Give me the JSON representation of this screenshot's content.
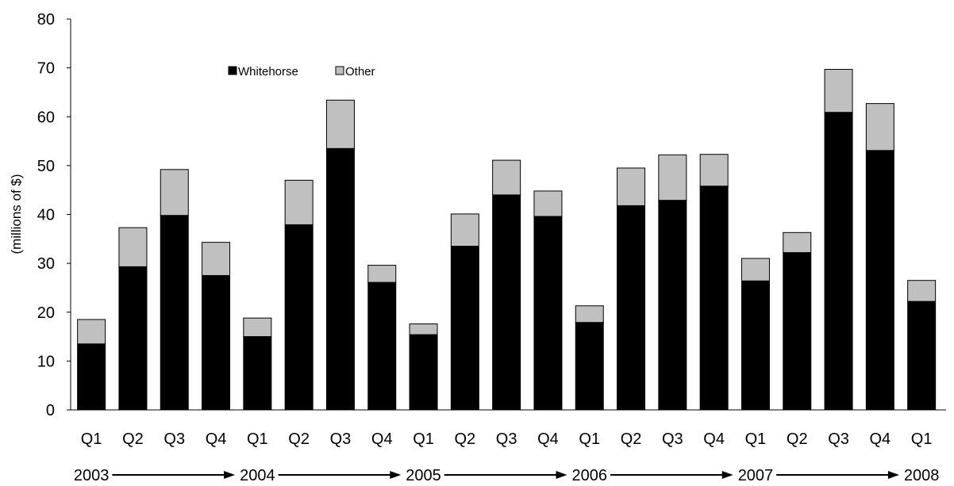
{
  "chart_data": {
    "type": "bar",
    "stacked": true,
    "categories": [
      "Q1",
      "Q2",
      "Q3",
      "Q4",
      "Q1",
      "Q2",
      "Q3",
      "Q4",
      "Q1",
      "Q2",
      "Q3",
      "Q4",
      "Q1",
      "Q2",
      "Q3",
      "Q4",
      "Q1",
      "Q2",
      "Q3",
      "Q4",
      "Q1"
    ],
    "series": [
      {
        "name": "Whitehorse",
        "color": "#000000",
        "values": [
          13.5,
          29.3,
          39.8,
          27.5,
          15.0,
          37.9,
          53.5,
          26.1,
          15.4,
          33.5,
          44.0,
          39.6,
          17.9,
          41.8,
          42.9,
          45.8,
          26.4,
          32.2,
          60.9,
          53.1,
          22.2
        ]
      },
      {
        "name": "Other",
        "color": "#c0c0c0",
        "values": [
          5.0,
          8.0,
          9.4,
          6.8,
          3.8,
          9.1,
          9.9,
          3.5,
          2.2,
          6.6,
          7.1,
          5.2,
          3.4,
          7.7,
          9.3,
          6.5,
          4.6,
          4.1,
          8.8,
          9.6,
          4.3
        ]
      }
    ],
    "ylabel": "(millions of $)",
    "ylim": [
      0,
      80
    ],
    "yticks": [
      0,
      10,
      20,
      30,
      40,
      50,
      60,
      70,
      80
    ],
    "year_labels": [
      "2003",
      "2004",
      "2005",
      "2006",
      "2007",
      "2008"
    ],
    "year_label_positions": [
      0,
      4,
      8,
      12,
      16,
      20
    ],
    "legend_position": "top-left",
    "grid": false
  }
}
